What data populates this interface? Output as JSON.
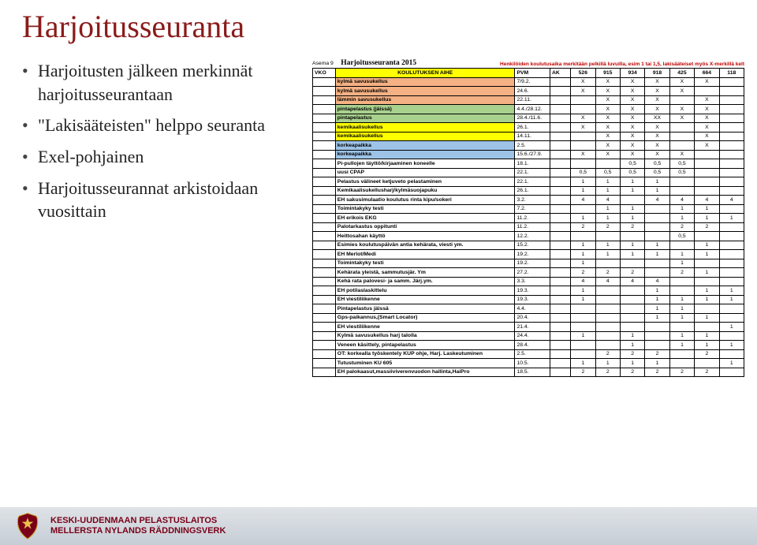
{
  "title": "Harjoitusseuranta",
  "bullets": [
    "Harjoitusten jälkeen merkinnät harjoitusseurantaan",
    "\"Lakisääteisten\" helppo seuranta",
    "Exel-pohjainen",
    "Harjoitusseurannat arkistoidaan vuosittain"
  ],
  "table": {
    "top_left_label": "Asema 9",
    "title": "Harjoitusseuranta 2015",
    "top_right_note": "Henkilöiden koulutusaika merkitään pelkillä luvuilla, esim 1 tai 1,5, lakisääteiset myös X-merkillä kelt",
    "headers": {
      "vko": "VKO",
      "topic": "KOULUTUKSEN AIHE",
      "pvm": "PVM",
      "ak": "AK",
      "cols": [
        "526",
        "915",
        "934",
        "918",
        "425",
        "664",
        "118"
      ]
    },
    "rows": [
      {
        "cls": "orange",
        "topic": "kylmä savusukellus",
        "pvm": "7/9.2.",
        "vals": [
          "X",
          "X",
          "X",
          "X",
          "X",
          "X",
          ""
        ]
      },
      {
        "cls": "orange",
        "topic": "kylmä savusukellus",
        "pvm": "24.6.",
        "vals": [
          "X",
          "X",
          "X",
          "X",
          "X",
          "",
          ""
        ]
      },
      {
        "cls": "orange",
        "topic": "lämmin savusukellus",
        "pvm": "22.11.",
        "vals": [
          "",
          "X",
          "X",
          "X",
          "",
          "X",
          ""
        ]
      },
      {
        "cls": "green",
        "topic": "pintapelastus (jäissä)",
        "pvm": "4.4./28.12.",
        "vals": [
          "",
          "X",
          "X",
          "X",
          "X",
          "X",
          ""
        ]
      },
      {
        "cls": "green",
        "topic": "pintapelastus",
        "pvm": "28.4./11.6.",
        "vals": [
          "X",
          "X",
          "X",
          "XX",
          "X",
          "X",
          ""
        ]
      },
      {
        "cls": "yellow",
        "topic": "kemikaalisukellus",
        "pvm": "26.1.",
        "vals": [
          "X",
          "X",
          "X",
          "X",
          "",
          "X",
          ""
        ]
      },
      {
        "cls": "yellow",
        "topic": "kemikaalisukellus",
        "pvm": "14.11.",
        "vals": [
          "",
          "X",
          "X",
          "X",
          "",
          "X",
          ""
        ]
      },
      {
        "cls": "blue",
        "topic": "korkeapaikka",
        "pvm": "2.5.",
        "vals": [
          "",
          "X",
          "X",
          "X",
          "",
          "X",
          ""
        ]
      },
      {
        "cls": "blue",
        "topic": "korkeapaikka",
        "pvm": "15.6./27.9.",
        "vals": [
          "X",
          "X",
          "X",
          "X",
          "X",
          "",
          ""
        ]
      },
      {
        "cls": "white",
        "topic": "Pi-pullojen täyttö/kirjaaminen koneelle",
        "pvm": "18.1.",
        "vals": [
          "",
          "",
          "0,5",
          "0,5",
          "0,5",
          "",
          ""
        ]
      },
      {
        "cls": "white",
        "topic": "uusi CPAP",
        "pvm": "22.1.",
        "vals": [
          "0,5",
          "0,5",
          "0,5",
          "0,5",
          "0,5",
          "",
          ""
        ]
      },
      {
        "cls": "white",
        "topic": "Pelastus välineet ketjuveto pelastaminen",
        "pvm": "22.1.",
        "vals": [
          "1",
          "1",
          "1",
          "1",
          "",
          "",
          ""
        ]
      },
      {
        "cls": "white",
        "topic": "Kemikaalisukellusharj/kylmäsuojapuku",
        "pvm": "26.1.",
        "vals": [
          "1",
          "1",
          "1",
          "1",
          "",
          "",
          ""
        ]
      },
      {
        "cls": "white",
        "topic": "EH sakusimulaatio koulutus rinta kipu/sokeri",
        "pvm": "3.2.",
        "vals": [
          "4",
          "4",
          "",
          "4",
          "4",
          "4",
          "4"
        ]
      },
      {
        "cls": "white",
        "topic": "Toimintakyky testi",
        "pvm": "7.2.",
        "vals": [
          "",
          "1",
          "1",
          "",
          "1",
          "1",
          ""
        ]
      },
      {
        "cls": "white",
        "topic": "EH erikois EKG",
        "pvm": "11.2.",
        "vals": [
          "1",
          "1",
          "1",
          "",
          "1",
          "1",
          "1"
        ]
      },
      {
        "cls": "white",
        "topic": "Palotarkastus oppitunti",
        "pvm": "11.2.",
        "vals": [
          "2",
          "2",
          "2",
          "",
          "2",
          "2",
          ""
        ]
      },
      {
        "cls": "white",
        "topic": "Heittosahan käyttö",
        "pvm": "12.2.",
        "vals": [
          "",
          "",
          "",
          "",
          "0,5",
          "",
          ""
        ]
      },
      {
        "cls": "white",
        "topic": "Esimies koulutuspäivän antia kehärata, viesti ym.",
        "pvm": "15.2.",
        "vals": [
          "1",
          "1",
          "1",
          "1",
          "",
          "1",
          ""
        ]
      },
      {
        "cls": "white",
        "topic": "EH Merlot/Medi",
        "pvm": "19.2.",
        "vals": [
          "1",
          "1",
          "1",
          "1",
          "1",
          "1",
          ""
        ]
      },
      {
        "cls": "white",
        "topic": "Toimintakyky testi",
        "pvm": "19.2.",
        "vals": [
          "1",
          "",
          "",
          "",
          "1",
          "",
          ""
        ]
      },
      {
        "cls": "white",
        "topic": "Kehärata yleistä, sammutusjär. Ym",
        "pvm": "27.2.",
        "vals": [
          "2",
          "2",
          "2",
          "",
          "2",
          "1",
          ""
        ]
      },
      {
        "cls": "white",
        "topic": "Kehä rata palovesi- ja samm. Järj.ym.",
        "pvm": "3.3.",
        "vals": [
          "4",
          "4",
          "4",
          "4",
          "",
          "",
          ""
        ]
      },
      {
        "cls": "white",
        "topic": "EH potilaslaskittelu",
        "pvm": "19.3.",
        "vals": [
          "1",
          "",
          "",
          "1",
          "",
          "1",
          "1"
        ]
      },
      {
        "cls": "white",
        "topic": "EH viestiliikenne",
        "pvm": "19.3.",
        "vals": [
          "1",
          "",
          "",
          "1",
          "1",
          "1",
          "1"
        ]
      },
      {
        "cls": "white",
        "topic": "Pintapelastus jäissä",
        "pvm": "4.4.",
        "vals": [
          "",
          "",
          "",
          "1",
          "1",
          "",
          ""
        ]
      },
      {
        "cls": "white",
        "topic": "Gps-paikannus,(Smart Locator)",
        "pvm": "20.4.",
        "vals": [
          "",
          "",
          "",
          "1",
          "1",
          "1",
          ""
        ]
      },
      {
        "cls": "white",
        "topic": "EH viestiliikenne",
        "pvm": "21.4.",
        "vals": [
          "",
          "",
          "",
          "",
          "",
          "",
          "1"
        ]
      },
      {
        "cls": "white",
        "topic": "Kylmä savusukellus harj talolla",
        "pvm": "24.4.",
        "vals": [
          "1",
          "",
          "1",
          "",
          "1",
          "1",
          ""
        ]
      },
      {
        "cls": "white",
        "topic": "Veneen käsittely, pintapelastus",
        "pvm": "28.4.",
        "vals": [
          "",
          "",
          "1",
          "",
          "1",
          "1",
          "1"
        ]
      },
      {
        "cls": "white",
        "topic": "OT: korkealla työskentely KUP ohje, Harj. Laskeutuminen",
        "pvm": "2.5.",
        "vals": [
          "",
          "2",
          "2",
          "2",
          "",
          "2",
          ""
        ]
      },
      {
        "cls": "white",
        "topic": "Tutustuminen KU 605",
        "pvm": "10.5.",
        "vals": [
          "1",
          "1",
          "1",
          "1",
          "",
          "",
          "1"
        ]
      },
      {
        "cls": "white",
        "topic": "EH palokaasut,massiiviverenvuodon hallinta,HaiPro",
        "pvm": "18.5.",
        "vals": [
          "2",
          "2",
          "2",
          "2",
          "2",
          "2",
          ""
        ]
      }
    ]
  },
  "footer": {
    "line1": "KESKI-UUDENMAAN PELASTUSLAITOS",
    "line2": "MELLERSTA NYLANDS RÄDDNINGSVERK"
  }
}
